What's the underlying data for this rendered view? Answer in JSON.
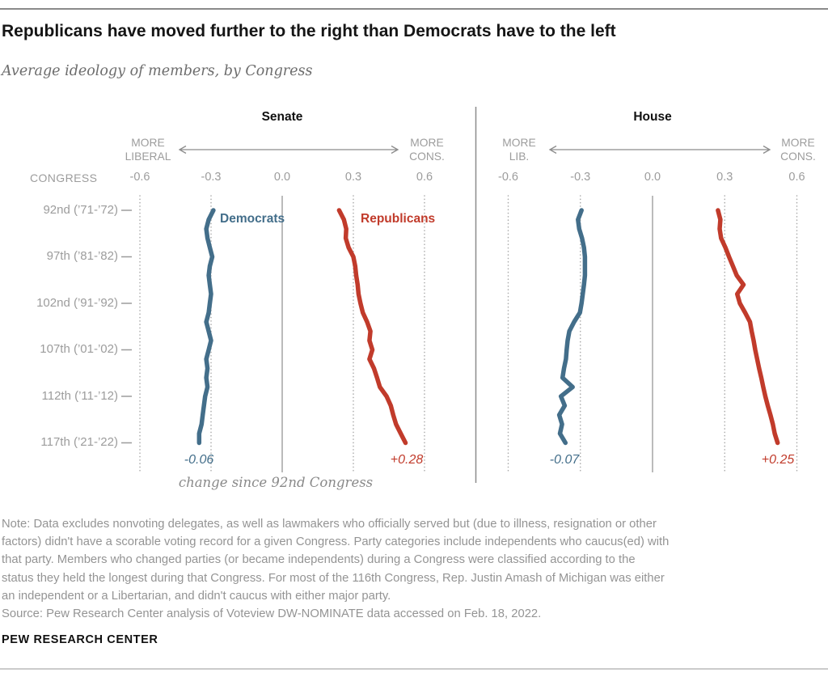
{
  "header": {
    "title": "Republicans have moved further to the right than Democrats have to the left",
    "subtitle": "Average ideology of members, by Congress"
  },
  "axis": {
    "congress_label": "CONGRESS",
    "tick_labels": [
      "-0.6",
      "-0.3",
      "0.0",
      "0.3",
      "0.6"
    ],
    "row_labels": [
      "92nd (’71-’72)",
      "97th (’81-’82)",
      "102nd (’91-’92)",
      "107th (’01-’02)",
      "112th (’11-’12)",
      "117th (’21-’22)"
    ]
  },
  "panels": {
    "senate": {
      "title": "Senate",
      "more_left": "MORE\nLIBERAL",
      "more_right": "MORE\nCONS.",
      "dem_change": "-0.06",
      "rep_change": "+0.28"
    },
    "house": {
      "title": "House",
      "more_left": "MORE\nLIB.",
      "more_right": "MORE\nCONS.",
      "dem_change": "-0.07",
      "rep_change": "+0.25"
    }
  },
  "legend": {
    "dem": "Democrats",
    "rep": "Republicans"
  },
  "change_caption": "change since 92nd Congress",
  "footer": {
    "note_lines": [
      "Note: Data excludes nonvoting delegates, as well as lawmakers who officially served but (due to illness, resignation or other",
      "factors) didn't have a scorable voting record for a given Congress. Party categories include independents who caucus(ed) with",
      "that party. Members who changed parties (or became independents) during a Congress were classified according to the",
      "status they held the longest during that Congress. For most of the 116th Congress, Rep. Justin Amash of Michigan was either",
      "an independent or a Libertarian, and didn't caucus with either major party.",
      "Source: Pew Research Center analysis of Voteview DW-NOMINATE data accessed on Feb. 18, 2022."
    ],
    "brand": "PEW RESEARCH CENTER"
  },
  "colors": {
    "dem": "#436e8a",
    "rep": "#c13b2b",
    "grid_dotted": "#a9a9a9",
    "grid_solid": "#9e9e9e",
    "divider": "#8c8c8c",
    "arrow": "#8c8c8c",
    "row_dash": "#9c9c9c"
  },
  "chart_data": {
    "type": "line",
    "title": "Average ideology of members, by Congress",
    "orientation": "vertical-time",
    "x_axis": {
      "label_left": "MORE LIBERAL",
      "label_right": "MORE CONS.",
      "ticks": [
        -0.6,
        -0.3,
        0.0,
        0.3,
        0.6
      ],
      "range": [
        -0.6,
        0.6
      ]
    },
    "y_axis": {
      "label": "CONGRESS",
      "congresses": [
        92,
        93,
        94,
        95,
        96,
        97,
        98,
        99,
        100,
        101,
        102,
        103,
        104,
        105,
        106,
        107,
        108,
        109,
        110,
        111,
        112,
        113,
        114,
        115,
        116,
        117
      ]
    },
    "series": [
      {
        "name": "Senate Democrats",
        "chamber": "senate",
        "party": "dem",
        "values": [
          -0.29,
          -0.31,
          -0.32,
          -0.315,
          -0.305,
          -0.295,
          -0.305,
          -0.31,
          -0.305,
          -0.3,
          -0.305,
          -0.31,
          -0.32,
          -0.31,
          -0.3,
          -0.31,
          -0.32,
          -0.315,
          -0.32,
          -0.315,
          -0.325,
          -0.33,
          -0.335,
          -0.34,
          -0.35,
          -0.35
        ],
        "change_since_92nd": -0.06
      },
      {
        "name": "Senate Republicans",
        "chamber": "senate",
        "party": "rep",
        "values": [
          0.24,
          0.26,
          0.27,
          0.268,
          0.28,
          0.3,
          0.308,
          0.312,
          0.318,
          0.322,
          0.33,
          0.34,
          0.358,
          0.372,
          0.368,
          0.38,
          0.368,
          0.387,
          0.4,
          0.412,
          0.44,
          0.458,
          0.468,
          0.48,
          0.5,
          0.52
        ],
        "change_since_92nd": 0.28
      },
      {
        "name": "House Democrats",
        "chamber": "house",
        "party": "dem",
        "values": [
          -0.295,
          -0.31,
          -0.305,
          -0.293,
          -0.285,
          -0.281,
          -0.281,
          -0.281,
          -0.285,
          -0.29,
          -0.295,
          -0.302,
          -0.326,
          -0.346,
          -0.353,
          -0.357,
          -0.36,
          -0.368,
          -0.374,
          -0.332,
          -0.381,
          -0.365,
          -0.388,
          -0.376,
          -0.385,
          -0.362
        ],
        "change_since_92nd": -0.07
      },
      {
        "name": "House Republicans",
        "chamber": "house",
        "party": "rep",
        "values": [
          0.272,
          0.282,
          0.279,
          0.285,
          0.303,
          0.318,
          0.334,
          0.35,
          0.378,
          0.352,
          0.363,
          0.385,
          0.405,
          0.412,
          0.42,
          0.427,
          0.435,
          0.443,
          0.452,
          0.46,
          0.469,
          0.479,
          0.49,
          0.5,
          0.508,
          0.52
        ],
        "change_since_92nd": 0.25
      }
    ]
  }
}
